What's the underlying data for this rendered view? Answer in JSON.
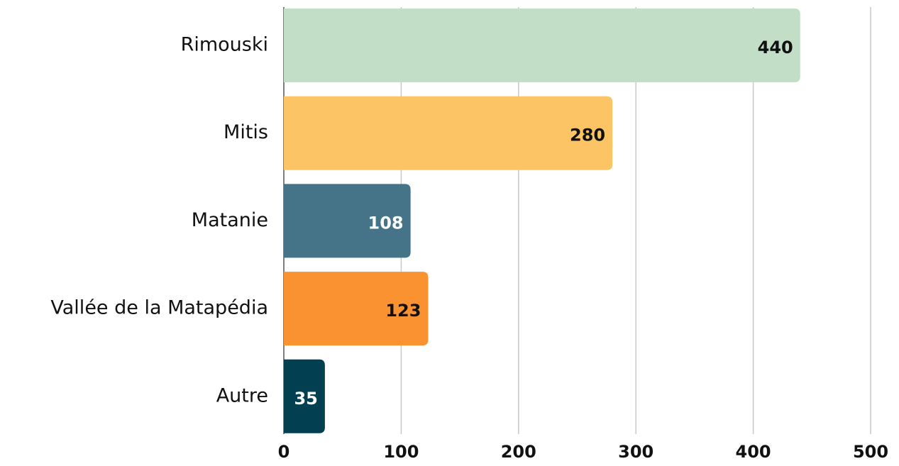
{
  "chart_data": {
    "type": "barh",
    "categories": [
      "Rimouski",
      "Mitis",
      "Matanie",
      "Vallée de la Matapédia",
      "Autre"
    ],
    "values": [
      440,
      280,
      108,
      123,
      35
    ],
    "colors": [
      "#c3dec6",
      "#fcc464",
      "#457387",
      "#fb9232",
      "#023f51"
    ],
    "xlim": [
      0,
      500
    ],
    "xticks": [
      0,
      100,
      200,
      300,
      400,
      500
    ],
    "grid": true
  }
}
